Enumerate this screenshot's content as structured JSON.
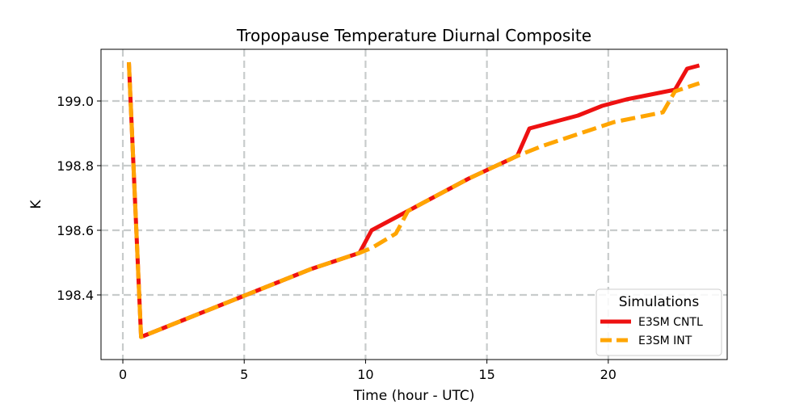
{
  "chart_data": {
    "type": "line",
    "title": "Tropopause Temperature Diurnal Composite",
    "xlabel": "Time (hour - UTC)",
    "ylabel": "K",
    "xlim": [
      -0.9,
      24.9
    ],
    "ylim": [
      198.2,
      199.16
    ],
    "xticks": [
      0,
      5,
      10,
      15,
      20
    ],
    "yticks": [
      198.4,
      198.6,
      198.8,
      199.0
    ],
    "xtick_labels": [
      "0",
      "5",
      "10",
      "15",
      "20"
    ],
    "ytick_labels": [
      "198.4",
      "198.6",
      "198.8",
      "199.0"
    ],
    "grid": true,
    "legend": {
      "title": "Simulations",
      "placement": "lower-right"
    },
    "series": [
      {
        "name": "E3SM CNTL",
        "color": "#ee1111",
        "style": "solid",
        "x": [
          0.25,
          0.75,
          1.75,
          2.75,
          3.75,
          4.75,
          5.75,
          6.75,
          7.75,
          8.75,
          9.75,
          10.25,
          11.25,
          12.25,
          13.25,
          14.25,
          15.25,
          16.25,
          16.75,
          17.75,
          18.75,
          19.75,
          20.75,
          21.75,
          22.75,
          23.25,
          23.75
        ],
        "y": [
          199.12,
          198.27,
          198.3,
          198.33,
          198.36,
          198.39,
          198.42,
          198.45,
          198.48,
          198.505,
          198.53,
          198.6,
          198.64,
          198.68,
          198.72,
          198.76,
          198.795,
          198.83,
          198.915,
          198.935,
          198.955,
          198.985,
          199.005,
          199.02,
          199.035,
          199.1,
          199.11
        ]
      },
      {
        "name": "E3SM INT",
        "color": "#ffa500",
        "style": "dashed",
        "x": [
          0.25,
          0.75,
          1.75,
          2.75,
          3.75,
          4.75,
          5.75,
          6.75,
          7.75,
          8.75,
          9.75,
          10.25,
          11.25,
          11.75,
          12.25,
          13.25,
          14.25,
          15.25,
          16.25,
          17.25,
          18.25,
          19.25,
          20.25,
          21.25,
          22.25,
          22.75,
          23.75
        ],
        "y": [
          199.12,
          198.27,
          198.3,
          198.33,
          198.36,
          198.39,
          198.42,
          198.45,
          198.48,
          198.505,
          198.53,
          198.545,
          198.59,
          198.66,
          198.68,
          198.72,
          198.76,
          198.795,
          198.83,
          198.86,
          198.885,
          198.91,
          198.935,
          198.95,
          198.965,
          199.03,
          199.055
        ]
      }
    ]
  }
}
